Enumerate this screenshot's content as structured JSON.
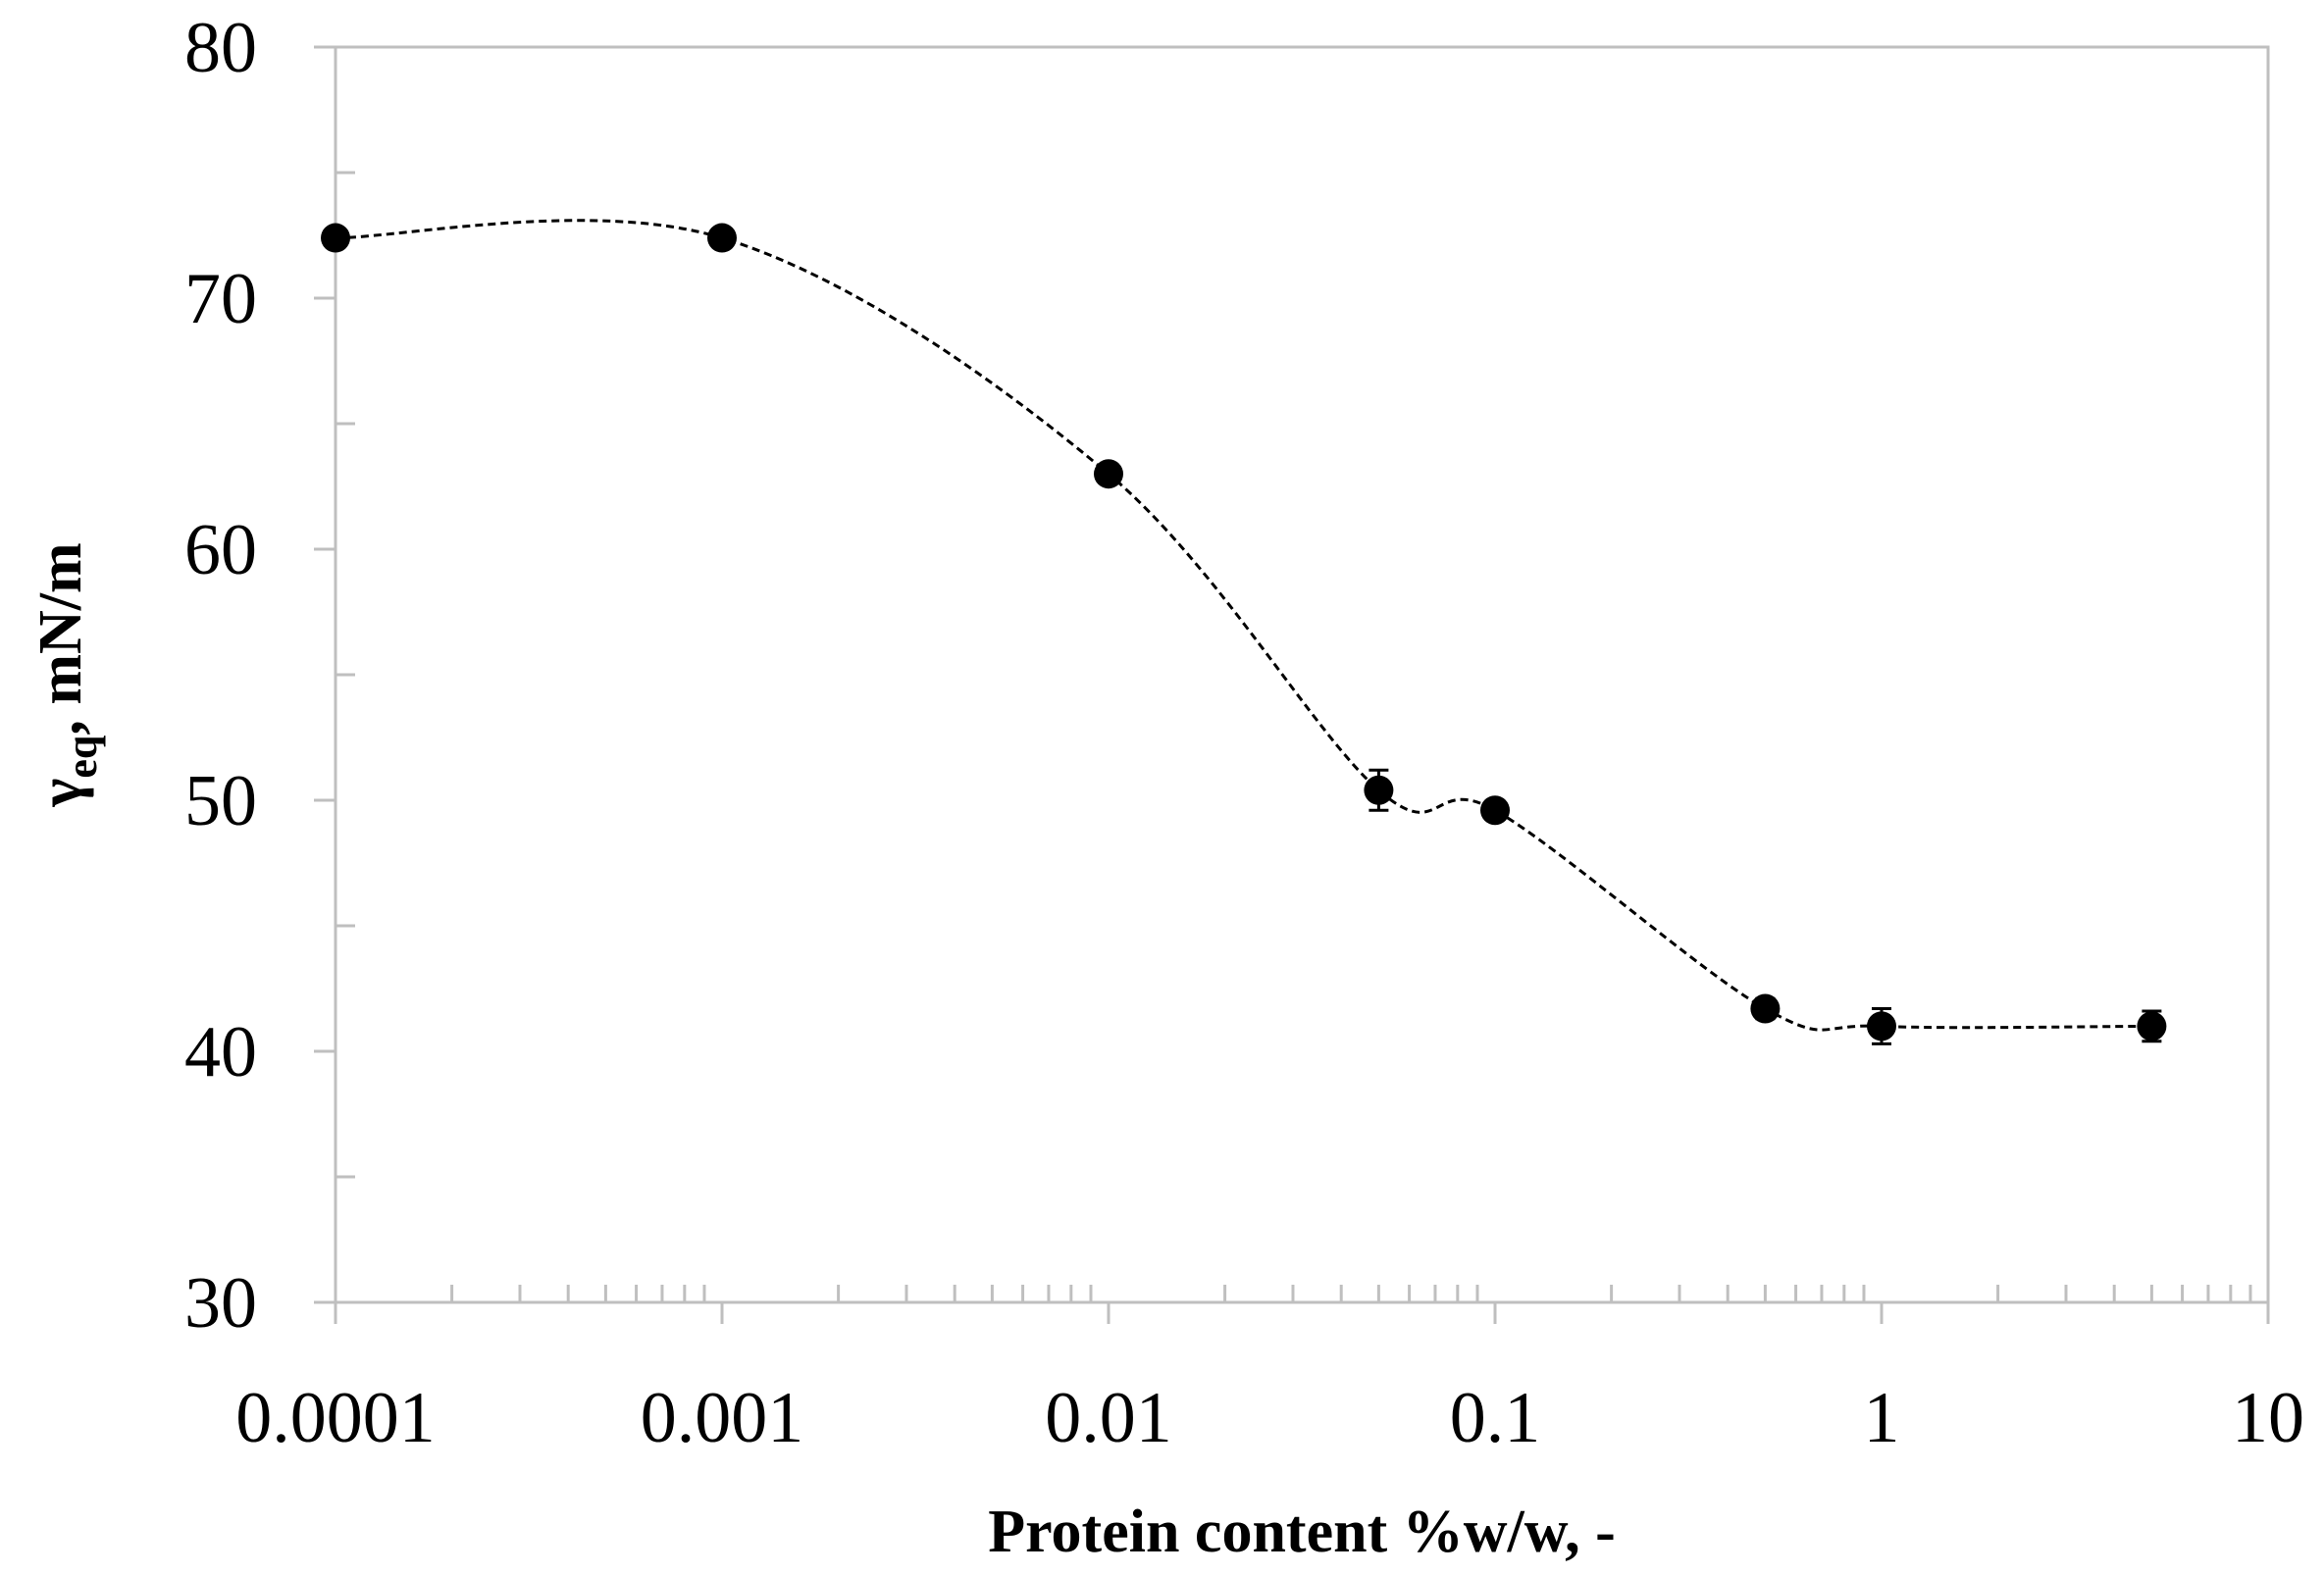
{
  "chart_data": {
    "type": "scatter",
    "title": "",
    "xlabel": "Protein content %w/w, -",
    "ylabel": {
      "symbol": "γ",
      "subscript": "eq",
      "rest": ", mN/m"
    },
    "xscale": "log",
    "xlim": [
      0.0001,
      10
    ],
    "ylim": [
      30,
      80
    ],
    "grid": false,
    "legend": "none",
    "x_tick_labels": [
      "0.0001",
      "0.001",
      "0.01",
      "0.1",
      "1",
      "10"
    ],
    "y_tick_labels": [
      "30",
      "40",
      "50",
      "60",
      "70",
      "80"
    ],
    "series": [
      {
        "name": "gamma_eq",
        "line": "dashed smooth",
        "x": [
          0.0001,
          0.001,
          0.01,
          0.05,
          0.1,
          0.5,
          1,
          5
        ],
        "y": [
          72.4,
          72.4,
          63.0,
          50.4,
          49.6,
          41.7,
          41.0,
          41.0
        ],
        "error": [
          0.3,
          0.3,
          0.3,
          0.8,
          0.3,
          0.4,
          0.7,
          0.6
        ]
      }
    ],
    "colors": {
      "frame": "#bfbfbf",
      "marker": "#000000",
      "line": "#000000"
    }
  }
}
